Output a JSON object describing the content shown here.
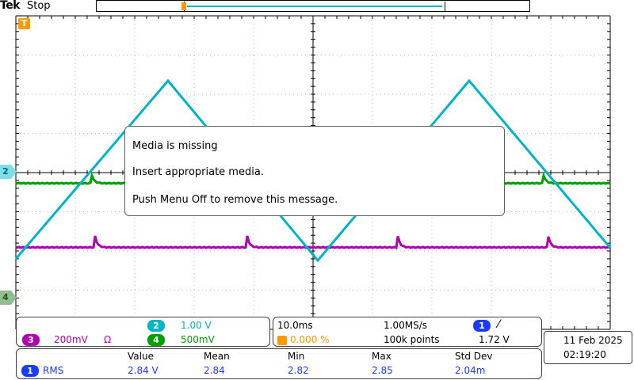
{
  "header": {
    "brand": "Tek",
    "acquisition_status": "Stop",
    "trigger_marker": "T"
  },
  "channel_markers": {
    "ch2": "2",
    "ch4": "4"
  },
  "popup": {
    "line1": "Media is missing",
    "line2": "Insert appropriate media.",
    "line3": "Push Menu Off to remove this message."
  },
  "channels": {
    "ch2": {
      "number": "2",
      "scale": "1.00 V",
      "color": "#00b4c8"
    },
    "ch3": {
      "number": "3",
      "scale": "200mV",
      "extra": "Ω",
      "color": "#b000b0"
    },
    "ch4": {
      "number": "4",
      "scale": "500mV",
      "color": "#00a000"
    }
  },
  "timebase": {
    "horizontal_scale": "10.0ms",
    "sample_rate": "1.00MS/s",
    "trigger_position": "0.000 %",
    "record_length": "100k points",
    "trigger_source": "1",
    "trigger_slope": "⁄",
    "trigger_level": "1.72 V"
  },
  "datetime": {
    "date": "11 Feb  2025",
    "time": "02:19:20"
  },
  "measurements": {
    "headers": [
      "Value",
      "Mean",
      "Min",
      "Max",
      "Std Dev"
    ],
    "rows": [
      {
        "source": "1",
        "type": "RMS",
        "value": "2.84 V",
        "mean": "2.84",
        "min": "2.82",
        "max": "2.85",
        "std_dev": "2.04m"
      }
    ]
  },
  "colors": {
    "ch1": "#1a3cff",
    "ch2": "#00b4c8",
    "ch3": "#b000b0",
    "ch4": "#00a000",
    "trigger": "#ff9900"
  }
}
